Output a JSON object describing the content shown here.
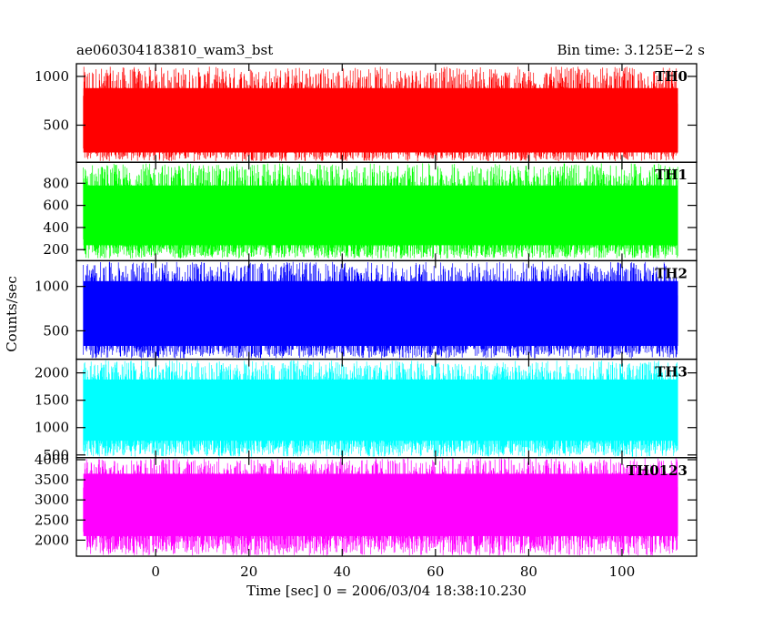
{
  "chart_data": {
    "type": "line",
    "title_left": "ae060304183810_wam3_bst",
    "title_right": "Bin time: 3.125E−2 s",
    "xlabel": "Time [sec] 0 = 2006/03/04 18:38:10.230",
    "ylabel": "Counts/sec",
    "xlim": [
      -17,
      116
    ],
    "x_range": [
      -15.5,
      112
    ],
    "x_ticks": [
      0,
      20,
      40,
      60,
      80,
      100
    ],
    "x_tick_labels": [
      "0",
      "20",
      "40",
      "60",
      "80",
      "100"
    ],
    "panels": [
      {
        "name": "TH0",
        "color": "#ff0000",
        "ylim": [
          120,
          1130
        ],
        "y_ticks": [
          500,
          1000
        ],
        "y_tick_labels": [
          "500",
          "1000"
        ],
        "low_min": 130,
        "low_max": 330,
        "high_min": 720,
        "high_max": 1100,
        "core": [
          220,
          880
        ]
      },
      {
        "name": "TH1",
        "color": "#00ff00",
        "ylim": [
          100,
          990
        ],
        "y_ticks": [
          200,
          400,
          600,
          800
        ],
        "y_tick_labels": [
          "200",
          "400",
          "600",
          "800"
        ],
        "low_min": 120,
        "low_max": 300,
        "high_min": 660,
        "high_max": 980,
        "core": [
          240,
          780
        ]
      },
      {
        "name": "TH2",
        "color": "#0000ff",
        "ylim": [
          180,
          1290
        ],
        "y_ticks": [
          500,
          1000
        ],
        "y_tick_labels": [
          "500",
          "1000"
        ],
        "low_min": 190,
        "low_max": 430,
        "high_min": 900,
        "high_max": 1280,
        "core": [
          330,
          1060
        ]
      },
      {
        "name": "TH3",
        "color": "#00ffff",
        "ylim": [
          450,
          2250
        ],
        "y_ticks": [
          500,
          1000,
          1500,
          2000
        ],
        "y_tick_labels": [
          "500",
          "1000",
          "1500",
          "2000"
        ],
        "low_min": 470,
        "low_max": 850,
        "high_min": 1650,
        "high_max": 2230,
        "core": [
          760,
          1880
        ]
      },
      {
        "name": "TH0123",
        "color": "#ff00ff",
        "ylim": [
          1600,
          4050
        ],
        "y_ticks": [
          2000,
          2500,
          3000,
          3500,
          4000
        ],
        "y_tick_labels": [
          "2000",
          "2500",
          "3000",
          "3500",
          "4000"
        ],
        "low_min": 1620,
        "low_max": 2300,
        "high_min": 3300,
        "high_max": 4040,
        "core": [
          2100,
          3650
        ]
      }
    ]
  }
}
